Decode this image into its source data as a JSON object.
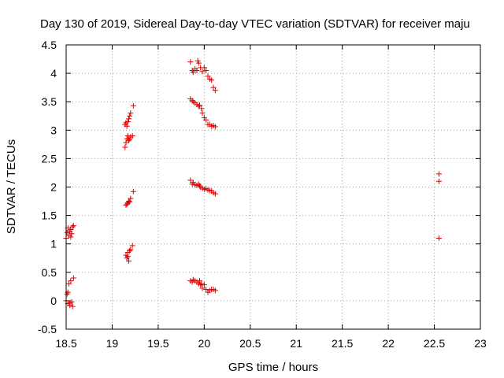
{
  "chart_data": {
    "type": "scatter",
    "title": "Day 130 of 2019, Sidereal Day-to-day VTEC variation (SDTVAR) for receiver maju",
    "xlabel": "GPS time / hours",
    "ylabel": "SDTVAR / TECUs",
    "xlim": [
      18.5,
      23
    ],
    "ylim": [
      -0.5,
      4.5
    ],
    "xticks": [
      "18.5",
      "19",
      "19.5",
      "20",
      "20.5",
      "21",
      "21.5",
      "22",
      "22.5",
      "23"
    ],
    "yticks": [
      "-0.5",
      "0",
      "0.5",
      "1",
      "1.5",
      "2",
      "2.5",
      "3",
      "3.5",
      "4",
      "4.5"
    ],
    "grid": true,
    "marker": "+",
    "color": "#e00000",
    "series": [
      {
        "name": "SDTVAR",
        "points": [
          [
            18.5,
            0.0
          ],
          [
            18.51,
            0.12
          ],
          [
            18.52,
            -0.05
          ],
          [
            18.53,
            0.3
          ],
          [
            18.54,
            -0.08
          ],
          [
            18.55,
            0.35
          ],
          [
            18.56,
            -0.02
          ],
          [
            18.57,
            -0.1
          ],
          [
            18.58,
            0.4
          ],
          [
            18.52,
            0.15
          ],
          [
            18.54,
            -0.04
          ],
          [
            18.5,
            1.1
          ],
          [
            18.51,
            1.2
          ],
          [
            18.52,
            1.28
          ],
          [
            18.53,
            1.15
          ],
          [
            18.54,
            1.22
          ],
          [
            18.55,
            1.25
          ],
          [
            18.56,
            1.18
          ],
          [
            18.57,
            1.3
          ],
          [
            18.58,
            1.32
          ],
          [
            18.55,
            1.12
          ],
          [
            19.15,
            0.8
          ],
          [
            19.16,
            0.75
          ],
          [
            19.17,
            0.85
          ],
          [
            19.18,
            0.7
          ],
          [
            19.19,
            0.88
          ],
          [
            19.2,
            0.9
          ],
          [
            19.22,
            0.97
          ],
          [
            19.17,
            0.78
          ],
          [
            19.15,
            1.68
          ],
          [
            19.16,
            1.7
          ],
          [
            19.17,
            1.72
          ],
          [
            19.18,
            1.75
          ],
          [
            19.2,
            1.8
          ],
          [
            19.23,
            1.92
          ],
          [
            19.19,
            1.74
          ],
          [
            19.14,
            2.7
          ],
          [
            19.15,
            2.78
          ],
          [
            19.16,
            2.85
          ],
          [
            19.17,
            2.9
          ],
          [
            19.18,
            2.82
          ],
          [
            19.2,
            2.88
          ],
          [
            19.22,
            2.9
          ],
          [
            19.19,
            2.84
          ],
          [
            19.14,
            3.1
          ],
          [
            19.15,
            3.13
          ],
          [
            19.16,
            3.07
          ],
          [
            19.17,
            3.15
          ],
          [
            19.18,
            3.2
          ],
          [
            19.19,
            3.25
          ],
          [
            19.2,
            3.3
          ],
          [
            19.23,
            3.43
          ],
          [
            19.85,
            0.35
          ],
          [
            19.87,
            0.33
          ],
          [
            19.88,
            0.37
          ],
          [
            19.9,
            0.35
          ],
          [
            19.92,
            0.33
          ],
          [
            19.94,
            0.3
          ],
          [
            19.95,
            0.35
          ],
          [
            19.96,
            0.28
          ],
          [
            19.97,
            0.3
          ],
          [
            19.98,
            0.22
          ],
          [
            20.0,
            0.28
          ],
          [
            20.02,
            0.2
          ],
          [
            20.04,
            0.15
          ],
          [
            20.06,
            0.18
          ],
          [
            20.08,
            0.2
          ],
          [
            20.1,
            0.2
          ],
          [
            20.12,
            0.18
          ],
          [
            19.85,
            2.12
          ],
          [
            19.87,
            2.05
          ],
          [
            19.88,
            2.08
          ],
          [
            19.9,
            2.04
          ],
          [
            19.92,
            2.03
          ],
          [
            19.94,
            2.05
          ],
          [
            19.95,
            2.02
          ],
          [
            19.96,
            2.0
          ],
          [
            19.98,
            1.98
          ],
          [
            20.0,
            1.96
          ],
          [
            20.02,
            1.97
          ],
          [
            20.04,
            1.95
          ],
          [
            20.06,
            1.94
          ],
          [
            20.08,
            1.93
          ],
          [
            20.1,
            1.9
          ],
          [
            20.12,
            1.88
          ],
          [
            19.85,
            3.55
          ],
          [
            19.87,
            3.52
          ],
          [
            19.88,
            3.5
          ],
          [
            19.9,
            3.48
          ],
          [
            19.92,
            3.45
          ],
          [
            19.94,
            3.42
          ],
          [
            19.95,
            3.44
          ],
          [
            19.97,
            3.38
          ],
          [
            19.98,
            3.3
          ],
          [
            20.0,
            3.22
          ],
          [
            20.02,
            3.18
          ],
          [
            20.04,
            3.1
          ],
          [
            20.06,
            3.1
          ],
          [
            20.08,
            3.07
          ],
          [
            20.1,
            3.08
          ],
          [
            20.12,
            3.06
          ],
          [
            19.85,
            4.2
          ],
          [
            19.87,
            4.05
          ],
          [
            19.88,
            4.02
          ],
          [
            19.9,
            4.08
          ],
          [
            19.92,
            4.05
          ],
          [
            19.93,
            4.22
          ],
          [
            19.94,
            4.18
          ],
          [
            19.96,
            4.1
          ],
          [
            19.98,
            4.03
          ],
          [
            20.0,
            4.1
          ],
          [
            20.02,
            4.05
          ],
          [
            20.04,
            3.95
          ],
          [
            20.06,
            3.9
          ],
          [
            20.08,
            3.88
          ],
          [
            20.1,
            3.75
          ],
          [
            20.12,
            3.7
          ],
          [
            22.55,
            1.1
          ],
          [
            22.55,
            2.1
          ],
          [
            22.55,
            2.23
          ]
        ]
      }
    ]
  }
}
